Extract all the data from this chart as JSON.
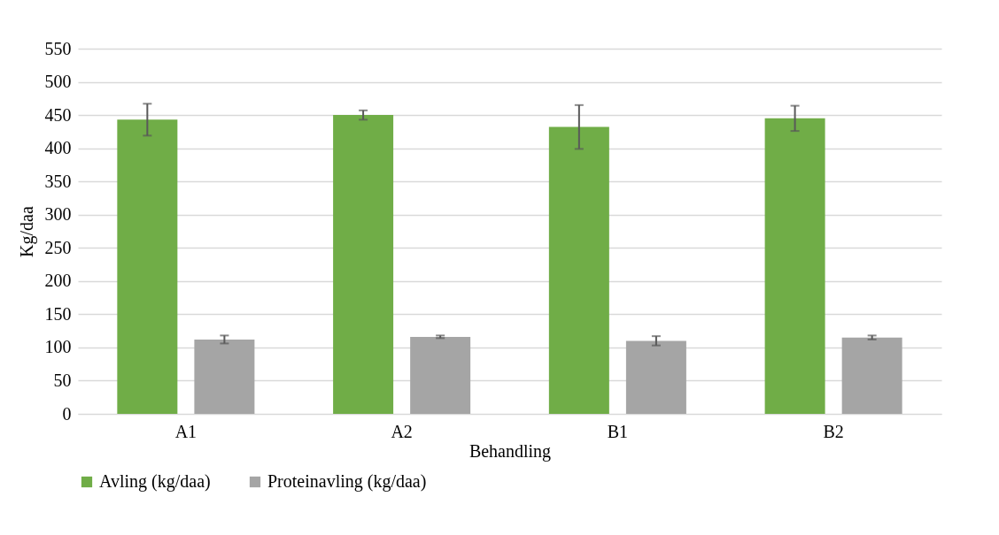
{
  "chart_data": {
    "type": "bar",
    "xlabel": "Behandling",
    "ylabel": "Kg/daa",
    "categories": [
      "A1",
      "A2",
      "B1",
      "B2"
    ],
    "series": [
      {
        "name": "Avling (kg/daa)",
        "color": "#70ad47",
        "values": [
          443,
          450,
          432,
          445
        ],
        "errors": [
          24,
          7,
          33,
          19
        ]
      },
      {
        "name": "Proteinavling (kg/daa)",
        "color": "#a5a5a5",
        "values": [
          112,
          116,
          110,
          115
        ],
        "errors": [
          6,
          2,
          7,
          3
        ]
      }
    ],
    "ylim": [
      0,
      550
    ],
    "yticks": [
      0,
      50,
      100,
      150,
      200,
      250,
      300,
      350,
      400,
      450,
      500,
      550
    ],
    "grid": "y",
    "legend": "bottom"
  }
}
